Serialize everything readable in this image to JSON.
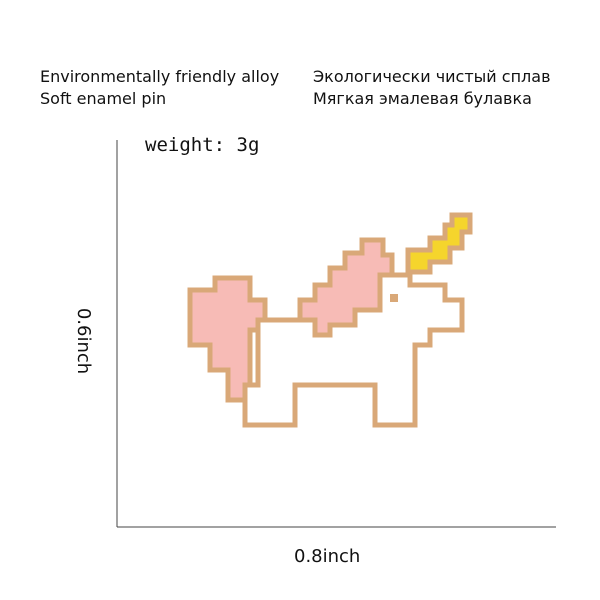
{
  "header": {
    "left": [
      "Environmentally friendly alloy",
      "Soft enamel pin"
    ],
    "right": [
      "Экологически чистый сплав",
      "Мягкая эмалевая булавка"
    ]
  },
  "weight": "weight: 3g",
  "height_label": "0.6inch",
  "width_label": "0.8inch"
}
